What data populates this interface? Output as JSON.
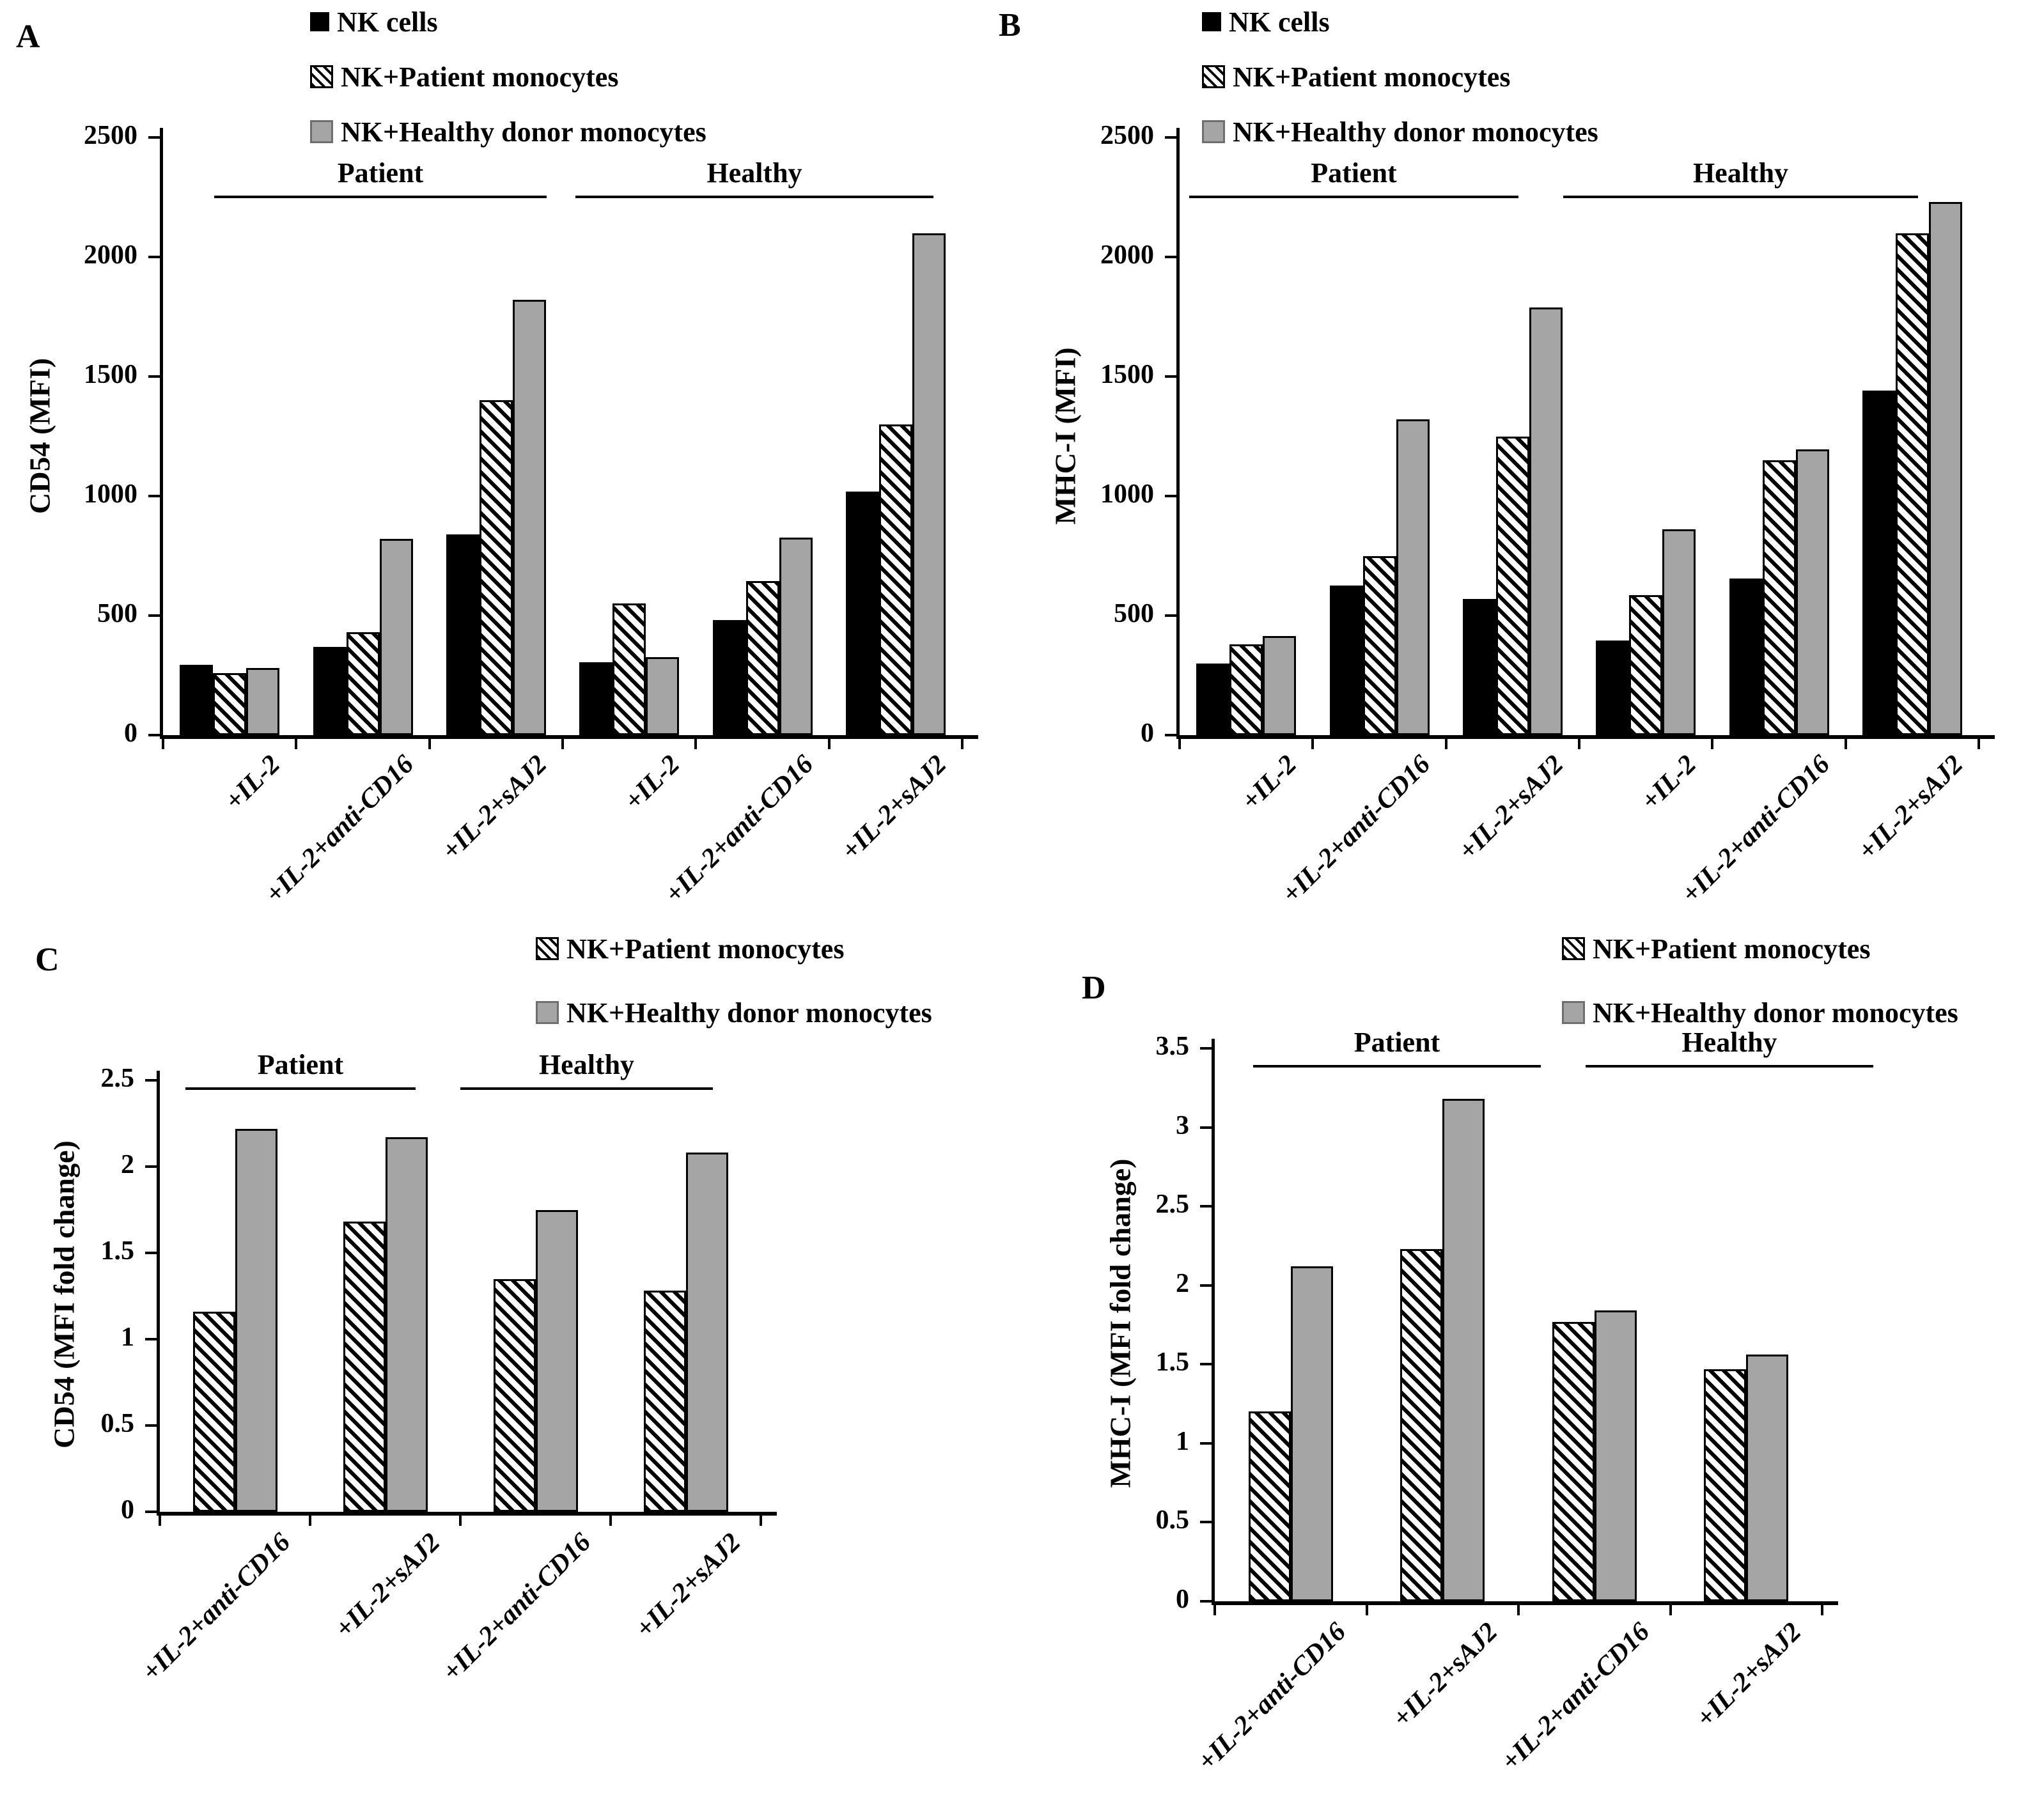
{
  "figure": {
    "panel_labels": [
      "A",
      "B",
      "C",
      "D"
    ]
  },
  "colors": {
    "bar_black": "#000000",
    "bar_gray": "#a5a5a5",
    "hatch_foreground": "#000000",
    "hatch_background": "#ffffff",
    "background": "#ffffff",
    "text": "#000000"
  },
  "chart_data": [
    {
      "panel": "A",
      "type": "bar",
      "ylabel": "CD54 (MFI)",
      "ylim": [
        0,
        2500
      ],
      "ytick_step": 500,
      "yticks": [
        "0",
        "500",
        "1000",
        "1500",
        "2000",
        "2500"
      ],
      "grid": "off",
      "legend_position": "top",
      "legend": [
        "NK cells",
        "NK+Patient monocytes",
        "NK+Healthy donor monocytes"
      ],
      "group_headers": [
        "Patient",
        "Healthy"
      ],
      "categories": [
        "+IL-2",
        "+IL-2+anti-CD16",
        "+IL-2+sAJ2",
        "+IL-2",
        "+IL-2+anti-CD16",
        "+IL-2+sAJ2"
      ],
      "series": [
        {
          "name": "NK cells",
          "pattern": "solid",
          "values": [
            295,
            370,
            840,
            305,
            480,
            1020
          ]
        },
        {
          "name": "NK+Patient monocytes",
          "pattern": "hatch",
          "values": [
            260,
            430,
            1400,
            550,
            645,
            1300
          ]
        },
        {
          "name": "NK+Healthy donor monocytes",
          "pattern": "gray",
          "values": [
            280,
            820,
            1820,
            325,
            825,
            2100
          ]
        }
      ]
    },
    {
      "panel": "B",
      "type": "bar",
      "ylabel": "MHC-I (MFI)",
      "ylim": [
        0,
        2500
      ],
      "ytick_step": 500,
      "yticks": [
        "0",
        "500",
        "1000",
        "1500",
        "2000",
        "2500"
      ],
      "grid": "off",
      "legend_position": "top",
      "legend": [
        "NK cells",
        "NK+Patient monocytes",
        "NK+Healthy donor monocytes"
      ],
      "group_headers": [
        "Patient",
        "Healthy"
      ],
      "categories": [
        "+IL-2",
        "+IL-2+anti-CD16",
        "+IL-2+sAJ2",
        "+IL-2",
        "+IL-2+anti-CD16",
        "+IL-2+sAJ2"
      ],
      "series": [
        {
          "name": "NK cells",
          "pattern": "solid",
          "values": [
            300,
            625,
            570,
            395,
            655,
            1440
          ]
        },
        {
          "name": "NK+Patient monocytes",
          "pattern": "hatch",
          "values": [
            380,
            750,
            1250,
            585,
            1150,
            2100
          ]
        },
        {
          "name": "NK+Healthy donor monocytes",
          "pattern": "gray",
          "values": [
            415,
            1320,
            1790,
            860,
            1195,
            2230
          ]
        }
      ]
    },
    {
      "panel": "C",
      "type": "bar",
      "ylabel": "CD54 (MFI fold change)",
      "ylim": [
        0,
        2.5
      ],
      "ytick_step": 0.5,
      "yticks": [
        "0",
        "0.5",
        "1",
        "1.5",
        "2",
        "2.5"
      ],
      "grid": "off",
      "legend_position": "top",
      "legend": [
        "NK+Patient monocytes",
        "NK+Healthy donor monocytes"
      ],
      "group_headers": [
        "Patient",
        "Healthy"
      ],
      "categories": [
        "+IL-2+anti-CD16",
        "+IL-2+sAJ2",
        "+IL-2+anti-CD16",
        "+IL-2+sAJ2"
      ],
      "series": [
        {
          "name": "NK+Patient monocytes",
          "pattern": "hatch",
          "values": [
            1.16,
            1.68,
            1.35,
            1.28
          ]
        },
        {
          "name": "NK+Healthy donor monocytes",
          "pattern": "gray",
          "values": [
            2.22,
            2.17,
            1.75,
            2.08
          ]
        }
      ]
    },
    {
      "panel": "D",
      "type": "bar",
      "ylabel": "MHC-I (MFI fold change)",
      "ylim": [
        0,
        3.5
      ],
      "ytick_step": 0.5,
      "yticks": [
        "0",
        "0.5",
        "1",
        "1.5",
        "2",
        "2.5",
        "3",
        "3.5"
      ],
      "grid": "off",
      "legend_position": "top",
      "legend": [
        "NK+Patient monocytes",
        "NK+Healthy donor monocytes"
      ],
      "group_headers": [
        "Patient",
        "Healthy"
      ],
      "categories": [
        "+IL-2+anti-CD16",
        "+IL-2+sAJ2",
        "+IL-2+anti-CD16",
        "+IL-2+sAJ2"
      ],
      "series": [
        {
          "name": "NK+Patient monocytes",
          "pattern": "hatch",
          "values": [
            1.2,
            2.23,
            1.77,
            1.47
          ]
        },
        {
          "name": "NK+Healthy donor monocytes",
          "pattern": "gray",
          "values": [
            2.12,
            3.18,
            1.84,
            1.56
          ]
        }
      ]
    }
  ]
}
